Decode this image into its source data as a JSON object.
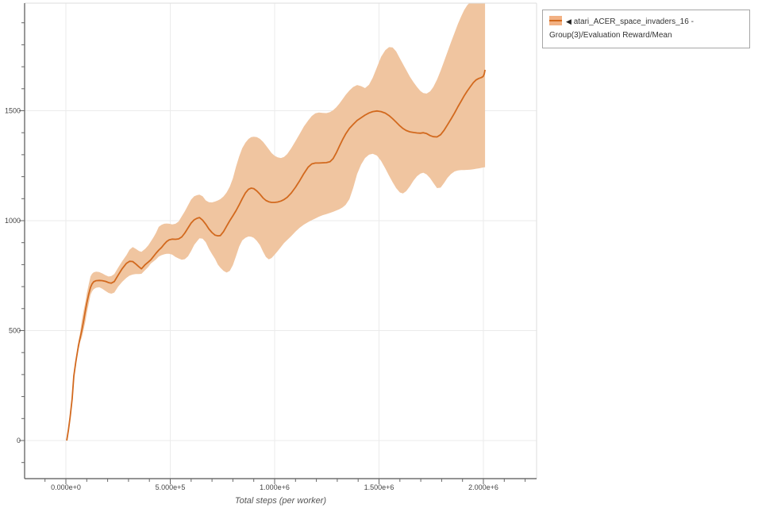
{
  "legend": {
    "collapse_icon": "◀",
    "label": "atari_ACER_space_invaders_16 - Group(3)/Evaluation Reward/Mean"
  },
  "colors": {
    "line": "#d2691e",
    "band": "#f0c5a0",
    "axis": "#555555",
    "frame": "#dddddd",
    "grid": "#ebebeb",
    "tick": "#666666",
    "tick_label": "#444444",
    "title": "#555555"
  },
  "chart_data": {
    "type": "line",
    "title": "",
    "xlabel": "Total steps (per worker)",
    "ylabel": "",
    "note": "x values stored in thousands of steps; band is [x, low, high]",
    "xlim_k": [
      -198,
      2255
    ],
    "ylim": [
      -173,
      1989
    ],
    "x_major_ticks_k": [
      0,
      500,
      1000,
      1500,
      2000
    ],
    "x_tick_labels": [
      "0.000e+0",
      "5.000e+5",
      "1.000e+6",
      "1.500e+6",
      "2.000e+6"
    ],
    "x_minor_step_k": 100,
    "x_minor_range_k": [
      -100,
      2200
    ],
    "y_major_ticks": [
      0,
      500,
      1000,
      1500
    ],
    "y_tick_labels": [
      "0",
      "500",
      "1000",
      "1500"
    ],
    "y_minor_step": 100,
    "y_minor_range": [
      -100,
      1900
    ],
    "grid": true,
    "legend_position": "top-right",
    "series": [
      {
        "name": "atari_ACER_space_invaders_16 - Group(3)/Evaluation Reward/Mean",
        "mean": [
          [
            4,
            0
          ],
          [
            12,
            48
          ],
          [
            20,
            105
          ],
          [
            30,
            190
          ],
          [
            38,
            293
          ],
          [
            48,
            360
          ],
          [
            57,
            413
          ],
          [
            66,
            458
          ],
          [
            76,
            500
          ],
          [
            85,
            545
          ],
          [
            93,
            590
          ],
          [
            100,
            625
          ],
          [
            110,
            667
          ],
          [
            118,
            696
          ],
          [
            125,
            712
          ],
          [
            133,
            722
          ],
          [
            145,
            727
          ],
          [
            160,
            728
          ],
          [
            175,
            727
          ],
          [
            190,
            724
          ],
          [
            205,
            718
          ],
          [
            218,
            716
          ],
          [
            232,
            723
          ],
          [
            250,
            752
          ],
          [
            270,
            782
          ],
          [
            290,
            806
          ],
          [
            305,
            815
          ],
          [
            320,
            814
          ],
          [
            335,
            803
          ],
          [
            350,
            790
          ],
          [
            362,
            781
          ],
          [
            380,
            800
          ],
          [
            395,
            812
          ],
          [
            407,
            822
          ],
          [
            420,
            838
          ],
          [
            432,
            852
          ],
          [
            445,
            866
          ],
          [
            458,
            878
          ],
          [
            471,
            893
          ],
          [
            483,
            905
          ],
          [
            495,
            913
          ],
          [
            510,
            916
          ],
          [
            525,
            915
          ],
          [
            540,
            917
          ],
          [
            555,
            926
          ],
          [
            570,
            944
          ],
          [
            585,
            967
          ],
          [
            600,
            989
          ],
          [
            615,
            1004
          ],
          [
            628,
            1011
          ],
          [
            640,
            1014
          ],
          [
            655,
            1002
          ],
          [
            670,
            984
          ],
          [
            685,
            962
          ],
          [
            700,
            946
          ],
          [
            715,
            934
          ],
          [
            728,
            931
          ],
          [
            740,
            932
          ],
          [
            755,
            950
          ],
          [
            770,
            975
          ],
          [
            785,
            1000
          ],
          [
            800,
            1022
          ],
          [
            815,
            1045
          ],
          [
            830,
            1072
          ],
          [
            845,
            1100
          ],
          [
            860,
            1126
          ],
          [
            875,
            1143
          ],
          [
            888,
            1148
          ],
          [
            900,
            1146
          ],
          [
            915,
            1135
          ],
          [
            930,
            1120
          ],
          [
            945,
            1103
          ],
          [
            958,
            1092
          ],
          [
            972,
            1086
          ],
          [
            985,
            1083
          ],
          [
            1000,
            1083
          ],
          [
            1015,
            1085
          ],
          [
            1030,
            1089
          ],
          [
            1045,
            1096
          ],
          [
            1060,
            1106
          ],
          [
            1080,
            1126
          ],
          [
            1100,
            1152
          ],
          [
            1120,
            1182
          ],
          [
            1140,
            1214
          ],
          [
            1160,
            1243
          ],
          [
            1178,
            1258
          ],
          [
            1195,
            1262
          ],
          [
            1212,
            1262
          ],
          [
            1230,
            1263
          ],
          [
            1248,
            1264
          ],
          [
            1265,
            1268
          ],
          [
            1280,
            1282
          ],
          [
            1295,
            1308
          ],
          [
            1310,
            1338
          ],
          [
            1325,
            1368
          ],
          [
            1340,
            1394
          ],
          [
            1358,
            1420
          ],
          [
            1376,
            1438
          ],
          [
            1395,
            1456
          ],
          [
            1414,
            1468
          ],
          [
            1433,
            1480
          ],
          [
            1452,
            1490
          ],
          [
            1470,
            1496
          ],
          [
            1490,
            1499
          ],
          [
            1510,
            1496
          ],
          [
            1530,
            1489
          ],
          [
            1548,
            1478
          ],
          [
            1565,
            1464
          ],
          [
            1582,
            1448
          ],
          [
            1600,
            1431
          ],
          [
            1615,
            1419
          ],
          [
            1630,
            1410
          ],
          [
            1648,
            1404
          ],
          [
            1665,
            1401
          ],
          [
            1682,
            1399
          ],
          [
            1698,
            1398
          ],
          [
            1712,
            1400
          ],
          [
            1728,
            1396
          ],
          [
            1745,
            1387
          ],
          [
            1760,
            1382
          ],
          [
            1778,
            1381
          ],
          [
            1795,
            1391
          ],
          [
            1812,
            1412
          ],
          [
            1828,
            1436
          ],
          [
            1845,
            1462
          ],
          [
            1862,
            1490
          ],
          [
            1878,
            1518
          ],
          [
            1893,
            1543
          ],
          [
            1908,
            1568
          ],
          [
            1923,
            1590
          ],
          [
            1938,
            1610
          ],
          [
            1952,
            1628
          ],
          [
            1965,
            1640
          ],
          [
            1978,
            1647
          ],
          [
            1990,
            1651
          ],
          [
            1999,
            1656
          ],
          [
            2004,
            1668
          ],
          [
            2008,
            1686
          ]
        ],
        "band": [
          [
            55,
            402,
            428
          ],
          [
            66,
            443,
            478
          ],
          [
            76,
            468,
            545
          ],
          [
            85,
            505,
            592
          ],
          [
            93,
            540,
            628
          ],
          [
            100,
            578,
            668
          ],
          [
            110,
            625,
            712
          ],
          [
            118,
            662,
            746
          ],
          [
            125,
            678,
            758
          ],
          [
            133,
            688,
            765
          ],
          [
            145,
            695,
            768
          ],
          [
            160,
            697,
            766
          ],
          [
            175,
            690,
            760
          ],
          [
            190,
            680,
            752
          ],
          [
            205,
            671,
            746
          ],
          [
            218,
            668,
            748
          ],
          [
            232,
            673,
            757
          ],
          [
            250,
            700,
            786
          ],
          [
            270,
            722,
            816
          ],
          [
            290,
            740,
            843
          ],
          [
            305,
            750,
            868
          ],
          [
            320,
            755,
            880
          ],
          [
            335,
            757,
            872
          ],
          [
            350,
            757,
            862
          ],
          [
            362,
            758,
            858
          ],
          [
            380,
            775,
            872
          ],
          [
            395,
            790,
            888
          ],
          [
            407,
            805,
            905
          ],
          [
            420,
            815,
            925
          ],
          [
            432,
            824,
            945
          ],
          [
            445,
            837,
            972
          ],
          [
            458,
            843,
            981
          ],
          [
            471,
            847,
            986
          ],
          [
            483,
            849,
            987
          ],
          [
            495,
            849,
            986
          ],
          [
            510,
            845,
            983
          ],
          [
            525,
            835,
            986
          ],
          [
            540,
            828,
            996
          ],
          [
            555,
            822,
            1020
          ],
          [
            570,
            825,
            1043
          ],
          [
            585,
            838,
            1070
          ],
          [
            600,
            862,
            1096
          ],
          [
            615,
            890,
            1111
          ],
          [
            628,
            906,
            1116
          ],
          [
            640,
            920,
            1118
          ],
          [
            655,
            918,
            1111
          ],
          [
            670,
            902,
            1092
          ],
          [
            685,
            872,
            1084
          ],
          [
            700,
            848,
            1083
          ],
          [
            715,
            826,
            1087
          ],
          [
            728,
            800,
            1092
          ],
          [
            740,
            786,
            1098
          ],
          [
            755,
            772,
            1110
          ],
          [
            770,
            764,
            1128
          ],
          [
            785,
            772,
            1155
          ],
          [
            800,
            798,
            1192
          ],
          [
            815,
            838,
            1245
          ],
          [
            830,
            882,
            1292
          ],
          [
            845,
            910,
            1330
          ],
          [
            860,
            922,
            1355
          ],
          [
            875,
            928,
            1372
          ],
          [
            888,
            927,
            1380
          ],
          [
            900,
            922,
            1382
          ],
          [
            915,
            908,
            1380
          ],
          [
            930,
            888,
            1372
          ],
          [
            945,
            858,
            1358
          ],
          [
            958,
            835,
            1342
          ],
          [
            972,
            824,
            1325
          ],
          [
            985,
            830,
            1308
          ],
          [
            1000,
            845,
            1295
          ],
          [
            1015,
            862,
            1288
          ],
          [
            1030,
            880,
            1285
          ],
          [
            1045,
            898,
            1290
          ],
          [
            1060,
            912,
            1303
          ],
          [
            1080,
            930,
            1330
          ],
          [
            1100,
            950,
            1362
          ],
          [
            1120,
            968,
            1395
          ],
          [
            1140,
            982,
            1428
          ],
          [
            1160,
            993,
            1455
          ],
          [
            1178,
            1002,
            1476
          ],
          [
            1195,
            1010,
            1488
          ],
          [
            1212,
            1018,
            1492
          ],
          [
            1230,
            1025,
            1490
          ],
          [
            1248,
            1030,
            1489
          ],
          [
            1265,
            1035,
            1494
          ],
          [
            1280,
            1040,
            1502
          ],
          [
            1295,
            1046,
            1515
          ],
          [
            1310,
            1052,
            1532
          ],
          [
            1325,
            1060,
            1552
          ],
          [
            1340,
            1072,
            1572
          ],
          [
            1358,
            1098,
            1592
          ],
          [
            1376,
            1148,
            1608
          ],
          [
            1395,
            1212,
            1617
          ],
          [
            1414,
            1255,
            1612
          ],
          [
            1433,
            1285,
            1603
          ],
          [
            1452,
            1300,
            1618
          ],
          [
            1470,
            1304,
            1650
          ],
          [
            1490,
            1296,
            1698
          ],
          [
            1510,
            1272,
            1745
          ],
          [
            1530,
            1238,
            1775
          ],
          [
            1548,
            1205,
            1789
          ],
          [
            1565,
            1175,
            1788
          ],
          [
            1582,
            1148,
            1770
          ],
          [
            1600,
            1128,
            1738
          ],
          [
            1615,
            1124,
            1712
          ],
          [
            1630,
            1134,
            1686
          ],
          [
            1648,
            1156,
            1655
          ],
          [
            1665,
            1182,
            1630
          ],
          [
            1682,
            1202,
            1608
          ],
          [
            1698,
            1214,
            1590
          ],
          [
            1712,
            1218,
            1580
          ],
          [
            1728,
            1210,
            1578
          ],
          [
            1745,
            1193,
            1588
          ],
          [
            1760,
            1172,
            1608
          ],
          [
            1778,
            1148,
            1642
          ],
          [
            1795,
            1150,
            1682
          ],
          [
            1812,
            1172,
            1726
          ],
          [
            1828,
            1195,
            1768
          ],
          [
            1845,
            1212,
            1812
          ],
          [
            1862,
            1224,
            1855
          ],
          [
            1878,
            1228,
            1895
          ],
          [
            1893,
            1230,
            1928
          ],
          [
            1908,
            1230,
            1958
          ],
          [
            1923,
            1231,
            1980
          ],
          [
            1938,
            1232,
            1995
          ],
          [
            1952,
            1234,
            2010
          ],
          [
            1965,
            1236,
            2010
          ],
          [
            1978,
            1238,
            2010
          ],
          [
            1990,
            1240,
            2010
          ],
          [
            1999,
            1242,
            2010
          ],
          [
            2004,
            1243,
            2010
          ],
          [
            2008,
            1243,
            2010
          ]
        ]
      }
    ]
  }
}
